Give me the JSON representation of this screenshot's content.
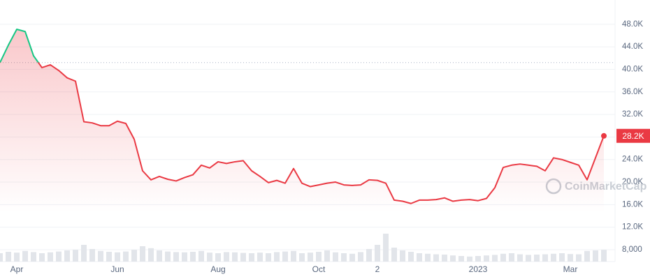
{
  "chart_data": {
    "type": "line",
    "categories": [
      null,
      null,
      "Apr",
      null,
      null,
      null,
      null,
      null,
      null,
      null,
      null,
      null,
      null,
      null,
      "Jun",
      null,
      null,
      null,
      null,
      null,
      null,
      null,
      null,
      null,
      null,
      null,
      "Aug",
      null,
      null,
      null,
      null,
      null,
      null,
      null,
      null,
      null,
      null,
      null,
      "Oct",
      null,
      null,
      null,
      null,
      null,
      null,
      "2",
      null,
      null,
      null,
      null,
      null,
      null,
      null,
      null,
      null,
      null,
      null,
      "2023",
      null,
      null,
      null,
      null,
      null,
      null,
      null,
      null,
      null,
      null,
      "Mar",
      null,
      null,
      null,
      null
    ],
    "series": [
      {
        "name": "Price",
        "color": "#ea3943",
        "color_above": "#16c784",
        "values": [
          41.2,
          44.3,
          47.1,
          46.7,
          42.4,
          40.3,
          40.8,
          39.8,
          38.5,
          37.9,
          30.7,
          30.5,
          30.0,
          30.0,
          30.8,
          30.4,
          27.6,
          22.0,
          20.4,
          21.0,
          20.5,
          20.2,
          20.8,
          21.3,
          23.0,
          22.5,
          23.6,
          23.3,
          23.6,
          23.8,
          22.0,
          21.0,
          19.9,
          20.3,
          19.8,
          22.4,
          19.8,
          19.2,
          19.5,
          19.8,
          20.0,
          19.5,
          19.4,
          19.5,
          20.4,
          20.3,
          19.8,
          16.8,
          16.6,
          16.2,
          16.8,
          16.8,
          16.9,
          17.2,
          16.6,
          16.8,
          16.9,
          16.7,
          17.1,
          19.0,
          22.6,
          23.0,
          23.2,
          23.0,
          22.8,
          22.0,
          24.3,
          24.0,
          23.5,
          23.0,
          20.4,
          24.3,
          28.2
        ]
      }
    ],
    "volume": [
      30,
      35,
      32,
      38,
      34,
      30,
      33,
      36,
      40,
      42,
      60,
      45,
      38,
      35,
      33,
      36,
      42,
      55,
      48,
      40,
      36,
      34,
      33,
      35,
      38,
      32,
      30,
      34,
      33,
      31,
      30,
      32,
      30,
      34,
      36,
      38,
      30,
      32,
      35,
      40,
      33,
      30,
      28,
      34,
      45,
      60,
      100,
      50,
      40,
      35,
      30,
      28,
      26,
      25,
      22,
      20,
      18,
      20,
      22,
      24,
      28,
      30,
      26,
      24,
      25,
      26,
      28,
      30,
      27,
      26,
      38,
      40,
      42
    ],
    "volume_ylim": [
      0,
      100
    ],
    "baseline": 41.2,
    "price_label": {
      "value": 28.2,
      "label": "28.2K"
    },
    "watermark": "CoinMarketCap",
    "ylim": [
      5.9,
      52.3
    ],
    "yticks": [
      {
        "value": 8,
        "label": "8,000"
      },
      {
        "value": 12,
        "label": "12.0K"
      },
      {
        "value": 16,
        "label": "16.0K"
      },
      {
        "value": 20,
        "label": "20.0K"
      },
      {
        "value": 24,
        "label": "24.0K"
      },
      {
        "value": 28,
        "label": "28.0K"
      },
      {
        "value": 32,
        "label": "32.0K"
      },
      {
        "value": 36,
        "label": "36.0K"
      },
      {
        "value": 40,
        "label": "40.0K"
      },
      {
        "value": 44,
        "label": "44.0K"
      },
      {
        "value": 48,
        "label": "48.0K"
      }
    ],
    "grid": true
  }
}
